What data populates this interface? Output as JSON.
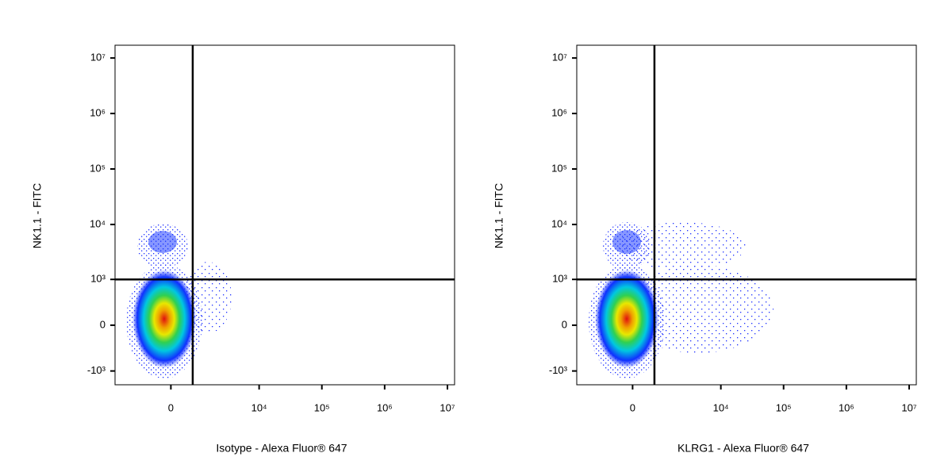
{
  "chart_data": [
    {
      "type": "density",
      "x_label": "Isotype - Alexa Fluor® 647",
      "y_label": "NK1.1 - FITC",
      "xlim": [
        -3000,
        13000000
      ],
      "ylim": [
        -1800,
        17000000
      ],
      "xticks": [
        0,
        {
          "value": 10000,
          "label": "10⁴"
        },
        {
          "value": 100000,
          "label": "10⁵"
        },
        {
          "value": 1000000,
          "label": "10⁶"
        },
        {
          "value": 10000000,
          "label": "10⁷"
        }
      ],
      "yticks": [
        {
          "value": 10000000,
          "label": "10⁷"
        },
        {
          "value": 1000000,
          "label": "10⁶"
        },
        {
          "value": 100000,
          "label": "10⁵"
        },
        {
          "value": 10000,
          "label": "10⁴"
        },
        {
          "value": 1000,
          "label": "10³"
        },
        0,
        {
          "value": -1000,
          "label": "-10³"
        }
      ],
      "gate": {
        "x": 700,
        "y": 1000
      }
    },
    {
      "type": "density",
      "x_label": "KLRG1 - Alexa Fluor® 647",
      "y_label": "NK1.1 - FITC",
      "xlim": [
        -3000,
        13000000
      ],
      "ylim": [
        -1800,
        17000000
      ],
      "xticks": [
        0,
        {
          "value": 10000,
          "label": "10⁴"
        },
        {
          "value": 100000,
          "label": "10⁵"
        },
        {
          "value": 1000000,
          "label": "10⁶"
        },
        {
          "value": 10000000,
          "label": "10⁷"
        }
      ],
      "yticks": [
        {
          "value": 10000000,
          "label": "10⁷"
        },
        {
          "value": 1000000,
          "label": "10⁶"
        },
        {
          "value": 100000,
          "label": "10⁵"
        },
        {
          "value": 10000,
          "label": "10⁴"
        },
        {
          "value": 1000,
          "label": "10³"
        },
        0,
        {
          "value": -1000,
          "label": "-10³"
        }
      ],
      "gate": {
        "x": 700,
        "y": 1000
      }
    }
  ]
}
